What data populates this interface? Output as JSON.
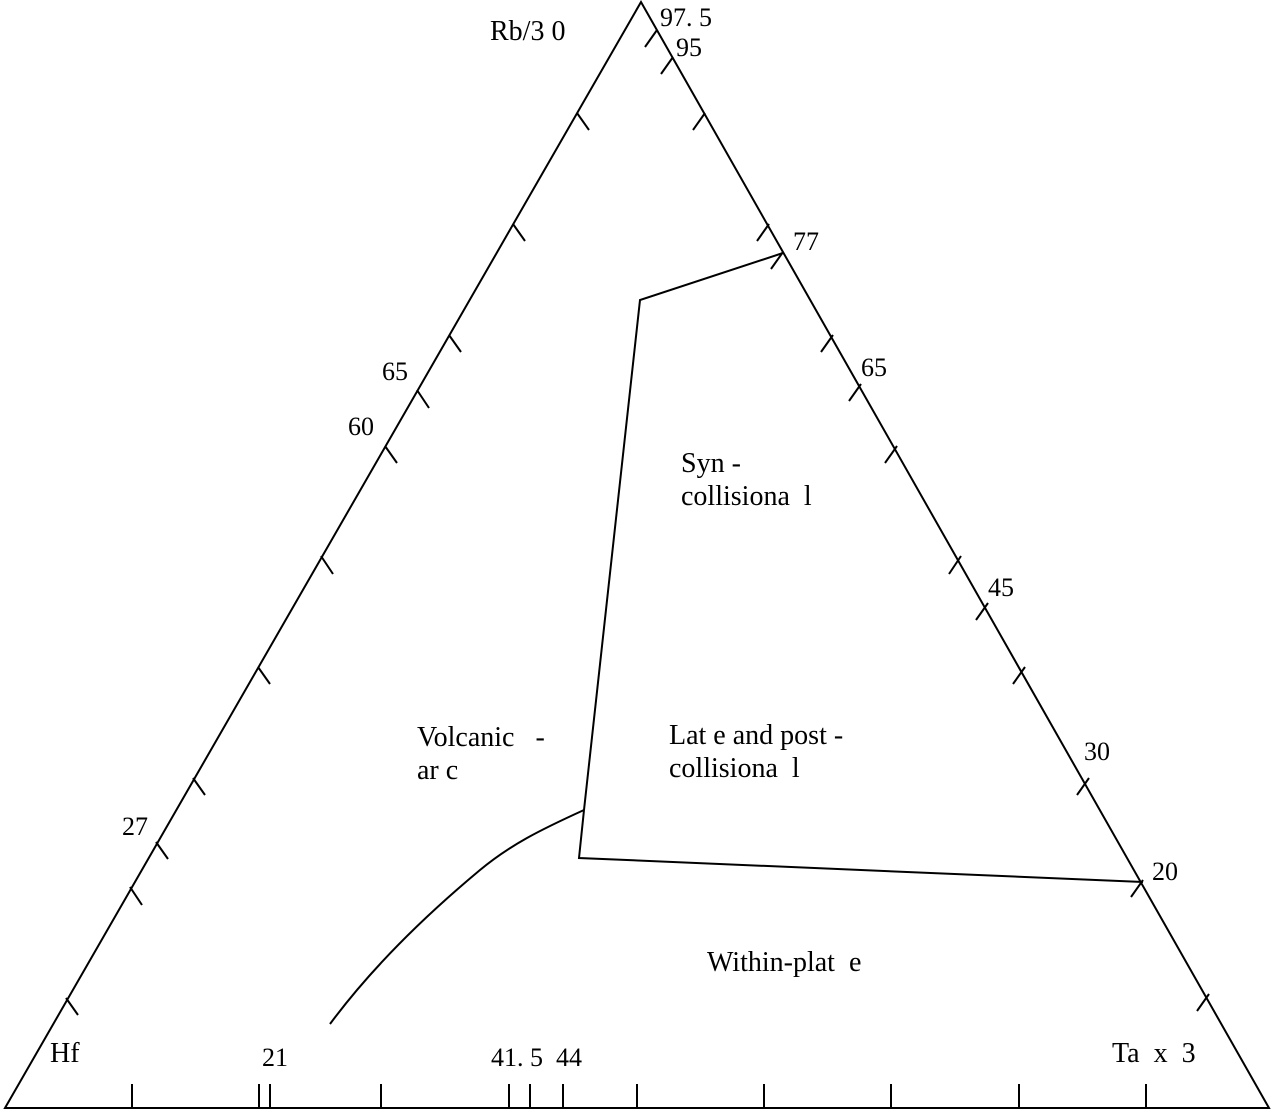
{
  "vertices": {
    "top": "Rb/3 0",
    "left": "Hf",
    "right": "Ta  x  3"
  },
  "left_edge_labels": [
    "65",
    "60",
    "27"
  ],
  "right_edge_labels": [
    "97. 5",
    "95",
    "77",
    "65",
    "45",
    "30",
    "20"
  ],
  "bottom_edge_labels": [
    "21",
    "41. 5",
    "44"
  ],
  "fields": {
    "syn_collisional": [
      "Syn -",
      "collisiona  l"
    ],
    "volcanic_arc": [
      "Volcanic   -",
      "ar c"
    ],
    "late_post": [
      "Lat e and post -",
      "collisiona  l"
    ],
    "within_plate": "Within-plat  e"
  }
}
